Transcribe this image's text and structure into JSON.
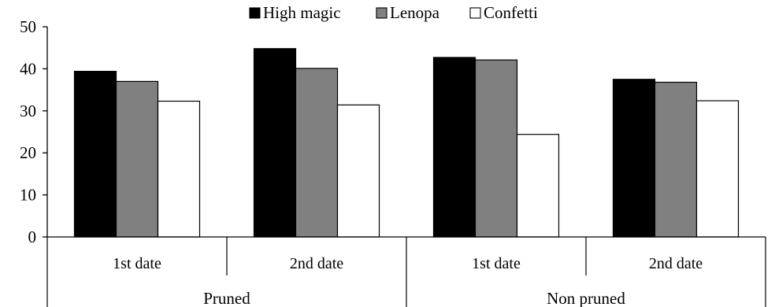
{
  "chart_data": {
    "type": "bar",
    "title": "",
    "xlabel": "",
    "ylabel": "",
    "ylim": [
      0,
      50
    ],
    "yticks": [
      0,
      10,
      20,
      30,
      40,
      50
    ],
    "grid": false,
    "legend_position": "top-center",
    "groups": [
      {
        "label": "Pruned",
        "categories": [
          "1st date",
          "2nd date"
        ]
      },
      {
        "label": "Non pruned",
        "categories": [
          "1st date",
          "2nd date"
        ]
      }
    ],
    "categories": [
      "1st date",
      "2nd date",
      "1st date",
      "2nd date"
    ],
    "series": [
      {
        "name": "High magic",
        "color": "#000000",
        "values": [
          39.4,
          44.8,
          42.7,
          37.5
        ]
      },
      {
        "name": "Lenopa",
        "color": "#808080",
        "values": [
          37.0,
          40.1,
          42.1,
          36.8
        ]
      },
      {
        "name": "Confetti",
        "color": "#ffffff",
        "values": [
          32.3,
          31.4,
          24.4,
          32.4
        ]
      }
    ]
  }
}
